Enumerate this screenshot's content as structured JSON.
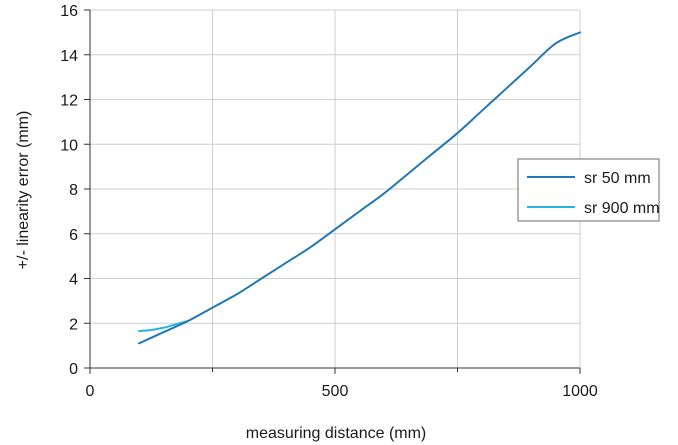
{
  "chart_data": {
    "type": "line",
    "xlabel": "measuring distance (mm)",
    "ylabel": "+/- linearity error (mm)",
    "xlim": [
      0,
      1000
    ],
    "ylim": [
      0,
      16
    ],
    "x_ticks": [
      0,
      500,
      1000
    ],
    "x_minor_gridlines": [
      250,
      750
    ],
    "y_ticks": [
      0,
      2,
      4,
      6,
      8,
      10,
      12,
      14,
      16
    ],
    "grid": true,
    "legend_position": "right",
    "series": [
      {
        "name": "sr 50 mm",
        "color": "#2178b4",
        "x": [
          100,
          150,
          200,
          250,
          300,
          350,
          400,
          450,
          500,
          550,
          600,
          650,
          700,
          750,
          800,
          850,
          900,
          950,
          1000
        ],
        "y": [
          1.1,
          1.6,
          2.1,
          2.7,
          3.3,
          4.0,
          4.7,
          5.4,
          6.2,
          7.0,
          7.8,
          8.7,
          9.6,
          10.5,
          11.5,
          12.5,
          13.5,
          14.5,
          15.0
        ]
      },
      {
        "name": "sr 900 mm",
        "color": "#29b4de",
        "x": [
          100,
          125,
          150,
          175,
          200
        ],
        "y": [
          1.65,
          1.7,
          1.8,
          1.95,
          2.1
        ]
      }
    ]
  }
}
